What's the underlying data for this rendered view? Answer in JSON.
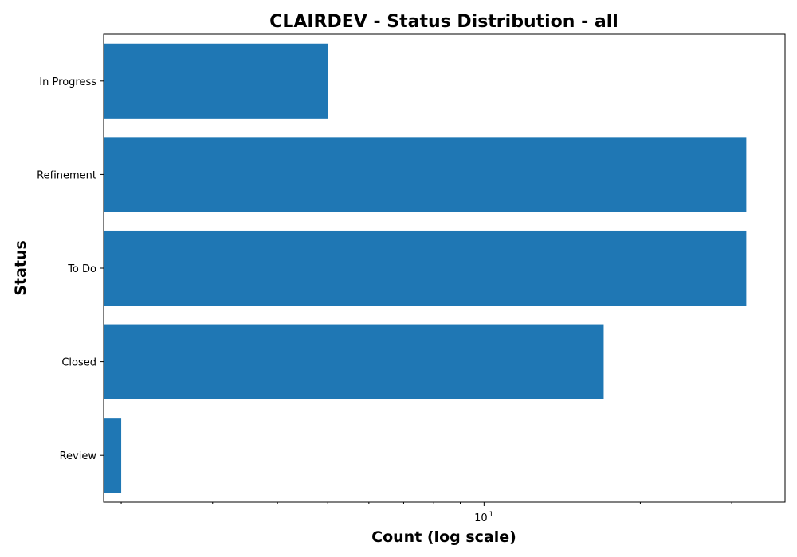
{
  "chart_data": {
    "type": "bar",
    "orientation": "horizontal",
    "title": "CLAIRDEV - Status Distribution - all",
    "xlabel": "Count (log scale)",
    "ylabel": "Status",
    "x_scale": "log",
    "xlim": [
      1.85,
      38
    ],
    "x_ticks": [
      {
        "value": 10,
        "base": "10",
        "exponent": "1"
      }
    ],
    "x_minor_ticks": [
      2,
      3,
      4,
      5,
      6,
      7,
      8,
      9,
      20,
      30
    ],
    "categories": [
      "In Progress",
      "Refinement",
      "To Do",
      "Closed",
      "Review"
    ],
    "values": [
      5,
      32,
      32,
      17,
      2
    ],
    "bar_color": "#1f77b4",
    "grid": false,
    "legend": false
  }
}
